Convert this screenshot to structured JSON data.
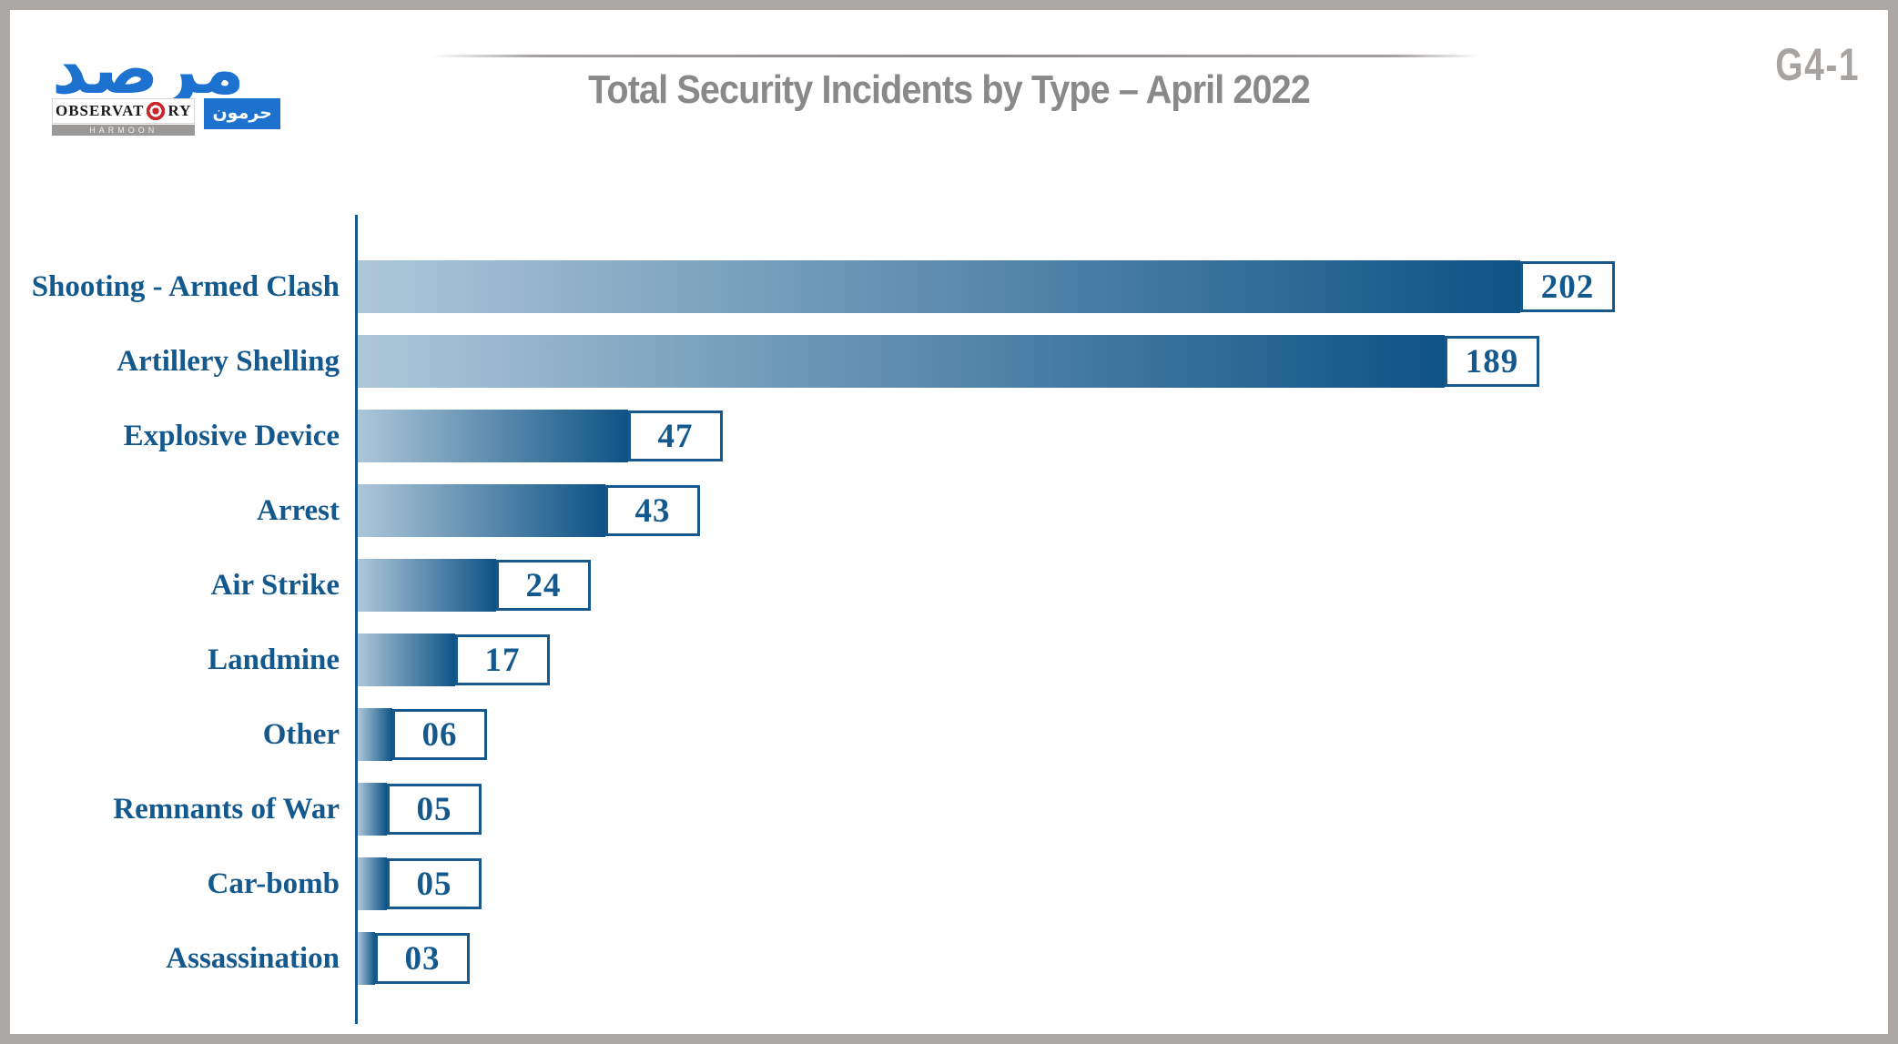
{
  "header": {
    "title": "Total Security Incidents by Type – April 2022",
    "figure_code": "G4-1",
    "title_color": "#8b8889"
  },
  "logo": {
    "arabic_word": "مرصد",
    "observatory_pre": "OBSERVAT",
    "observatory_post": "RY",
    "target_icon": "target-icon",
    "harmoon_text": "HARMOON",
    "arabic_sub": "حرمون",
    "brand_blue": "#1d72d0",
    "target_red": "#c9272c"
  },
  "chart_data": {
    "type": "bar",
    "orientation": "horizontal",
    "title": "Total Security Incidents by Type – April 2022",
    "categories": [
      "Shooting - Armed Clash",
      "Artillery Shelling",
      "Explosive Device",
      "Arrest",
      "Air Strike",
      "Landmine",
      "Other",
      "Remnants of War",
      "Car-bomb",
      "Assassination"
    ],
    "values": [
      202,
      189,
      47,
      43,
      24,
      17,
      6,
      5,
      5,
      3
    ],
    "value_labels": [
      "202",
      "189",
      "47",
      "43",
      "24",
      "17",
      "06",
      "05",
      "05",
      "03"
    ],
    "xlim": [
      0,
      210
    ],
    "xlabel": "",
    "ylabel": "",
    "grid": false,
    "legend": false,
    "bar_gradient_start": "#aec7d9",
    "bar_gradient_end": "#0d5385",
    "label_color": "#14598d",
    "axis_color": "#17598c",
    "value_box_border": "#17598c"
  }
}
